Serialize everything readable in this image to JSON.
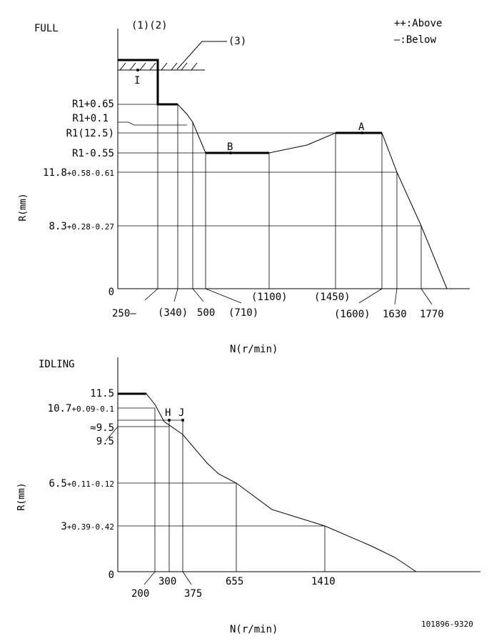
{
  "full": {
    "title": "FULL",
    "refs": {
      "r12": "(1)(2)",
      "r3": "(3)"
    },
    "legend": {
      "above": "++:Above",
      "below": "—:Below"
    },
    "axis_title": "R(mm)",
    "x_title": "N(r/min)",
    "zero": "0",
    "points": {
      "I": "I",
      "A": "A",
      "B": "B"
    },
    "y_labels": {
      "r1_065": "R1+0.65",
      "r1_01": "R1+0.1",
      "r1_125": "R1(12.5)",
      "r1_055": "R1-0.55",
      "v118": {
        "main": "11.8",
        "tol": "+0.58-0.61"
      },
      "v83": {
        "main": "8.3",
        "tol": "+0.28-0.27"
      }
    },
    "x_labels": {
      "n250": "250—",
      "n340": "(340)",
      "n500": "500",
      "n710": "(710)",
      "n1100": "(1100)",
      "n1450": "(1450)",
      "n1600": "(1600)",
      "n1630": "1630",
      "n1770": "1770"
    }
  },
  "idling": {
    "title": "IDLING",
    "axis_title": "R(mm)",
    "x_title": "N(r/min)",
    "zero": "0",
    "points": {
      "H": "H",
      "J": "J"
    },
    "y_labels": {
      "v115": "11.5",
      "v107": {
        "main": "10.7",
        "tol": "+0.09-0.1"
      },
      "approx95": "≈9.5",
      "v95": "9.5",
      "v65": {
        "main": "6.5",
        "tol": "+0.11-0.12"
      },
      "v3": {
        "main": "3",
        "tol": "+0.39-0.42"
      }
    },
    "x_labels": {
      "n200": "200",
      "n300": "300",
      "n375": "375",
      "n655": "655",
      "n1410": "1410"
    }
  },
  "code": "101896-9320"
}
